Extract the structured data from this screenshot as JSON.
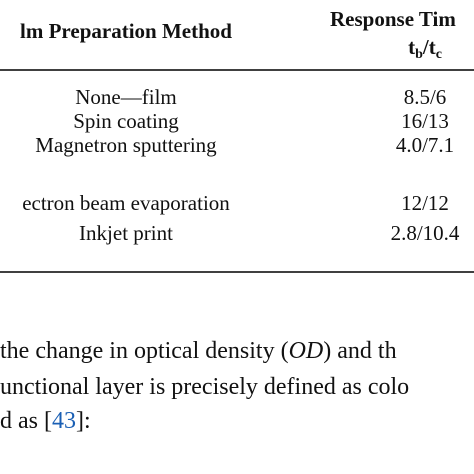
{
  "table": {
    "header": [
      "lm Preparation Method",
      "Response Tim"
    ],
    "subheader": [
      "t",
      "b",
      "/t",
      "c"
    ],
    "rows": [
      [
        "None—film",
        "8.5/6"
      ],
      [
        "Spin coating",
        "16/13"
      ],
      [
        "Magnetron sputtering",
        "4.0/7.1"
      ],
      [
        "ectron beam evaporation",
        "12/12"
      ],
      [
        "Inkjet print",
        "2.8/10.4"
      ]
    ]
  },
  "paragraph": {
    "lines": [
      [
        "the change in optical density (",
        "OD",
        ") and th"
      ],
      [
        "unctional layer is precisely defined as colo"
      ],
      [
        "d as [",
        "43",
        "]:"
      ]
    ]
  }
}
